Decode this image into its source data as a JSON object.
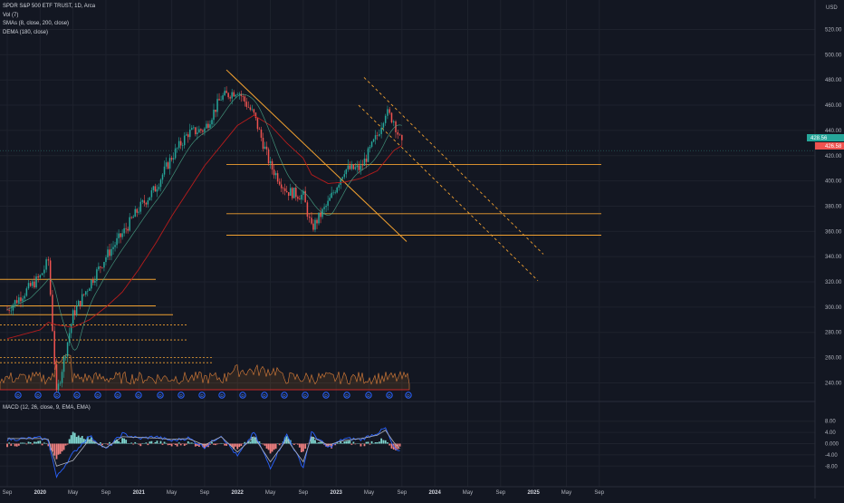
{
  "legend": {
    "title": "SPDR S&P 500 ETF TRUST, 1D, Arca",
    "vol": "Vol (7)",
    "smas": "SMAs (8, close, 200, close)",
    "dema": "DEMA (180, close)",
    "macd": "MACD (12, 26, close, 9, EMA, EMA)"
  },
  "currency": "USD",
  "price_axis": {
    "ticks": [
      "520.00",
      "500.00",
      "480.00",
      "460.00",
      "440.00",
      "420.00",
      "400.00",
      "380.00",
      "360.00",
      "340.00",
      "320.00",
      "300.00",
      "280.00",
      "260.00",
      "240.00"
    ],
    "values": [
      520,
      500,
      480,
      460,
      440,
      420,
      400,
      380,
      360,
      340,
      320,
      300,
      280,
      260,
      240
    ],
    "last_price_label": "428.56",
    "sma_label": "426.58",
    "last_price_tag_color": "#26a69a"
  },
  "macd_axis": {
    "ticks": [
      "8.00",
      "4.00",
      "0.000",
      "-4.00",
      "-8.00"
    ],
    "values": [
      8,
      4,
      0,
      -4,
      -8
    ]
  },
  "time_axis": {
    "ticks": [
      "Sep",
      "2020",
      "May",
      "Sep",
      "2021",
      "May",
      "Sep",
      "2022",
      "May",
      "Sep",
      "2023",
      "May",
      "Sep",
      "2024",
      "May",
      "Sep",
      "2025",
      "May",
      "Sep"
    ]
  },
  "chart_data": {
    "type": "line",
    "symbol": "SPDR S&P 500 ETF TRUST, 1D, Arca",
    "ylim": [
      230,
      530
    ],
    "x_dates": [
      "2019-09",
      "2020-01",
      "2020-02",
      "2020-03",
      "2020-05",
      "2020-07",
      "2020-09",
      "2020-11",
      "2021-01",
      "2021-03",
      "2021-05",
      "2021-07",
      "2021-09",
      "2021-11",
      "2022-01",
      "2022-03",
      "2022-05",
      "2022-07",
      "2022-09",
      "2022-10",
      "2022-12",
      "2023-02",
      "2023-04",
      "2023-06",
      "2023-07",
      "2023-08",
      "2023-09"
    ],
    "close": [
      298,
      324,
      337,
      230,
      294,
      318,
      340,
      358,
      378,
      394,
      419,
      438,
      441,
      466,
      472,
      452,
      412,
      392,
      388,
      362,
      382,
      409,
      410,
      436,
      455,
      448,
      428
    ],
    "dema_180": [
      275,
      282,
      288,
      286,
      284,
      290,
      300,
      312,
      330,
      350,
      372,
      392,
      412,
      428,
      444,
      452,
      444,
      430,
      418,
      405,
      398,
      399,
      402,
      408,
      416,
      424,
      428
    ],
    "levels": [
      322,
      301,
      294,
      286,
      274,
      413,
      374,
      357
    ],
    "macd_values": [
      1.5,
      2.0,
      1.2,
      -12,
      -3.5,
      2.8,
      -2.0,
      3.5,
      1.8,
      2.5,
      1.0,
      2.0,
      -1.2,
      3.0,
      -4.5,
      4.0,
      -8.5,
      3.2,
      -8.5,
      4.0,
      -1.5,
      1.8,
      1.5,
      3.8,
      5.5,
      -1.5,
      -3.5
    ],
    "signal_values": [
      1.8,
      1.8,
      1.5,
      -8,
      -6,
      1.5,
      -1.5,
      2.5,
      2.2,
      2.0,
      1.5,
      1.8,
      -0.5,
      2.5,
      -3,
      2.5,
      -6.5,
      1.5,
      -6.5,
      2.5,
      -0.5,
      1.2,
      1.8,
      3.0,
      4.8,
      0.5,
      -2.5
    ]
  }
}
